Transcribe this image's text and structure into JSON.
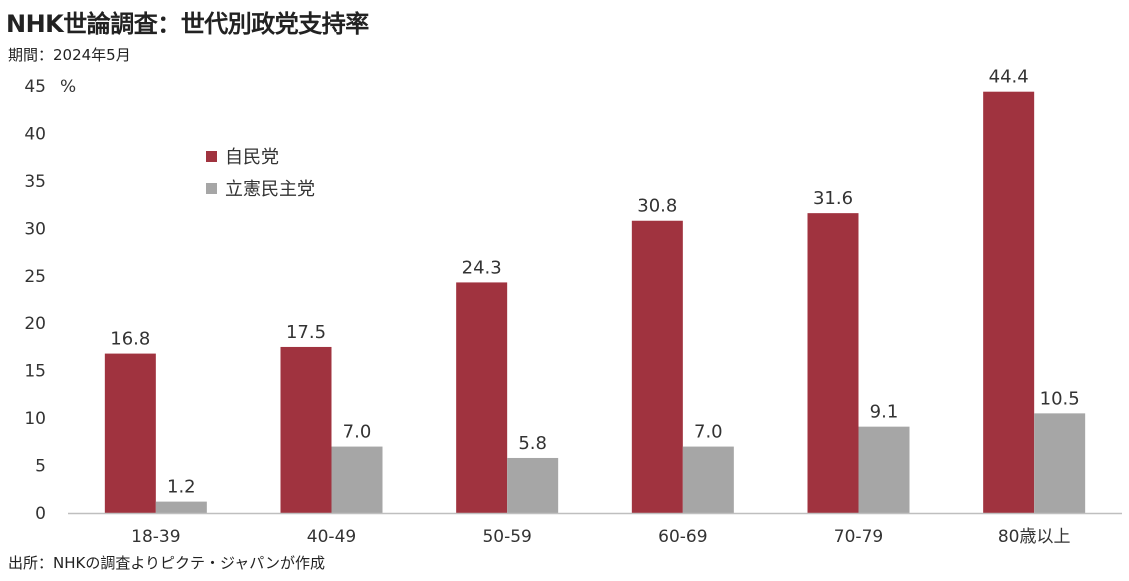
{
  "title": "NHK世論調査：世代別政党支持率",
  "period": "期間：2024年5月",
  "source": "出所：NHKの調査よりピクテ・ジャパンが作成",
  "colors": {
    "ldp": "#A0333F",
    "cdp": "#A6A6A6",
    "axis": "#bfbfbf"
  },
  "chart_data": {
    "type": "bar",
    "categories": [
      "18-39",
      "40-49",
      "50-59",
      "60-69",
      "70-79",
      "80歳以上"
    ],
    "series": [
      {
        "name": "自民党",
        "values": [
          16.8,
          17.5,
          24.3,
          30.8,
          31.6,
          44.4
        ]
      },
      {
        "name": "立憲民主党",
        "values": [
          1.2,
          7.0,
          5.8,
          7.0,
          9.1,
          10.5
        ]
      }
    ],
    "ylim": [
      0,
      45
    ],
    "yticks": [
      0,
      5,
      10,
      15,
      20,
      25,
      30,
      35,
      40,
      45
    ],
    "yunit": "%",
    "legend_position": "top-left",
    "grid": false
  }
}
